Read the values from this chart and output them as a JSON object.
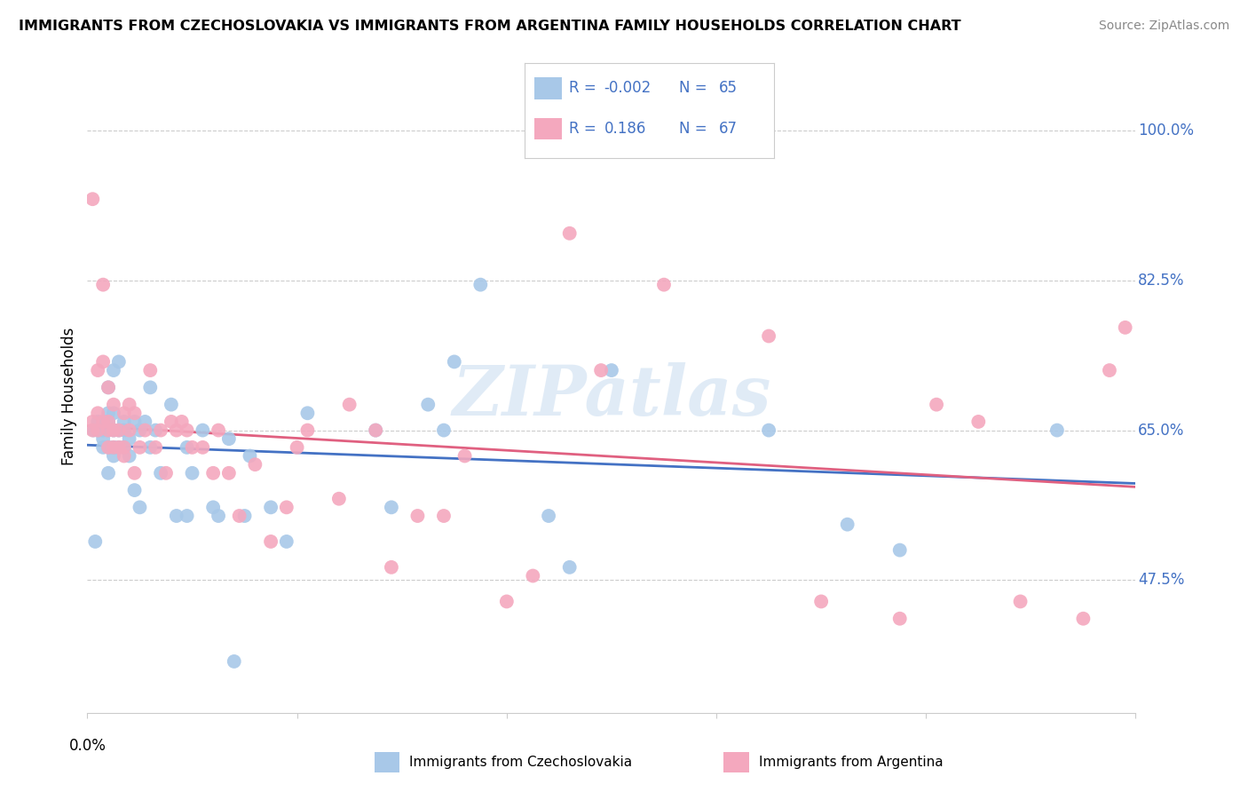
{
  "title": "IMMIGRANTS FROM CZECHOSLOVAKIA VS IMMIGRANTS FROM ARGENTINA FAMILY HOUSEHOLDS CORRELATION CHART",
  "source": "Source: ZipAtlas.com",
  "ylabel": "Family Households",
  "yticks": [
    "47.5%",
    "65.0%",
    "82.5%",
    "100.0%"
  ],
  "ytick_vals": [
    0.475,
    0.65,
    0.825,
    1.0
  ],
  "xlim": [
    0.0,
    0.2
  ],
  "ylim": [
    0.32,
    1.06
  ],
  "color_czech": "#a8c8e8",
  "color_arg": "#f4a8be",
  "line_color_czech": "#4472c4",
  "line_color_arg": "#e06080",
  "label_color": "#4472c4",
  "watermark": "ZIPatlas",
  "czech_x": [
    0.0012,
    0.0015,
    0.002,
    0.002,
    0.003,
    0.003,
    0.003,
    0.003,
    0.004,
    0.004,
    0.004,
    0.004,
    0.004,
    0.004,
    0.005,
    0.005,
    0.005,
    0.005,
    0.005,
    0.005,
    0.006,
    0.006,
    0.006,
    0.007,
    0.007,
    0.007,
    0.008,
    0.008,
    0.009,
    0.009,
    0.01,
    0.01,
    0.011,
    0.012,
    0.012,
    0.013,
    0.014,
    0.016,
    0.017,
    0.019,
    0.019,
    0.02,
    0.022,
    0.024,
    0.025,
    0.027,
    0.028,
    0.03,
    0.031,
    0.035,
    0.038,
    0.042,
    0.055,
    0.058,
    0.065,
    0.068,
    0.07,
    0.075,
    0.088,
    0.092,
    0.1,
    0.13,
    0.145,
    0.155,
    0.185
  ],
  "czech_y": [
    0.65,
    0.52,
    0.65,
    0.66,
    0.63,
    0.64,
    0.65,
    0.66,
    0.6,
    0.63,
    0.65,
    0.66,
    0.67,
    0.7,
    0.62,
    0.63,
    0.63,
    0.65,
    0.67,
    0.72,
    0.63,
    0.65,
    0.73,
    0.63,
    0.65,
    0.66,
    0.62,
    0.64,
    0.58,
    0.66,
    0.56,
    0.65,
    0.66,
    0.63,
    0.7,
    0.65,
    0.6,
    0.68,
    0.55,
    0.55,
    0.63,
    0.6,
    0.65,
    0.56,
    0.55,
    0.64,
    0.38,
    0.55,
    0.62,
    0.56,
    0.52,
    0.67,
    0.65,
    0.56,
    0.68,
    0.65,
    0.73,
    0.82,
    0.55,
    0.49,
    0.72,
    0.65,
    0.54,
    0.51,
    0.65
  ],
  "arg_x": [
    0.001,
    0.001,
    0.001,
    0.002,
    0.002,
    0.002,
    0.003,
    0.003,
    0.003,
    0.004,
    0.004,
    0.004,
    0.004,
    0.005,
    0.005,
    0.005,
    0.006,
    0.006,
    0.007,
    0.007,
    0.007,
    0.008,
    0.008,
    0.009,
    0.009,
    0.01,
    0.011,
    0.012,
    0.013,
    0.014,
    0.015,
    0.016,
    0.017,
    0.018,
    0.019,
    0.02,
    0.022,
    0.024,
    0.025,
    0.027,
    0.029,
    0.032,
    0.035,
    0.038,
    0.04,
    0.042,
    0.048,
    0.05,
    0.055,
    0.058,
    0.063,
    0.068,
    0.072,
    0.08,
    0.085,
    0.092,
    0.098,
    0.11,
    0.13,
    0.14,
    0.155,
    0.162,
    0.17,
    0.178,
    0.19,
    0.195,
    0.198
  ],
  "arg_y": [
    0.65,
    0.66,
    0.92,
    0.65,
    0.67,
    0.72,
    0.66,
    0.73,
    0.82,
    0.63,
    0.65,
    0.66,
    0.7,
    0.63,
    0.65,
    0.68,
    0.63,
    0.65,
    0.62,
    0.63,
    0.67,
    0.65,
    0.68,
    0.6,
    0.67,
    0.63,
    0.65,
    0.72,
    0.63,
    0.65,
    0.6,
    0.66,
    0.65,
    0.66,
    0.65,
    0.63,
    0.63,
    0.6,
    0.65,
    0.6,
    0.55,
    0.61,
    0.52,
    0.56,
    0.63,
    0.65,
    0.57,
    0.68,
    0.65,
    0.49,
    0.55,
    0.55,
    0.62,
    0.45,
    0.48,
    0.88,
    0.72,
    0.82,
    0.76,
    0.45,
    0.43,
    0.68,
    0.66,
    0.45,
    0.43,
    0.72,
    0.77
  ]
}
